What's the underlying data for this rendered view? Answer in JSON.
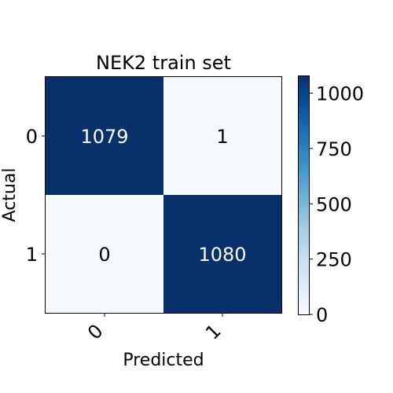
{
  "chart_data": {
    "type": "heatmap",
    "title": "NEK2 train set",
    "xlabel": "Predicted",
    "ylabel": "Actual",
    "x_tick_labels": [
      "0",
      "1"
    ],
    "y_tick_labels": [
      "0",
      "1"
    ],
    "matrix": [
      [
        1079,
        1
      ],
      [
        0,
        1080
      ]
    ],
    "cell_labels": [
      [
        "1079",
        "1"
      ],
      [
        "0",
        "1080"
      ]
    ],
    "colormap": "Blues",
    "colorbar": {
      "range": [
        0,
        1080
      ],
      "ticks": [
        0,
        250,
        500,
        750,
        1000
      ],
      "tick_labels": [
        "0",
        "250",
        "500",
        "750",
        "1000"
      ]
    },
    "colors": {
      "high": "#08306b",
      "low": "#f7fbff",
      "text_on_dark": "#ffffff",
      "text_on_light": "#000000"
    }
  }
}
